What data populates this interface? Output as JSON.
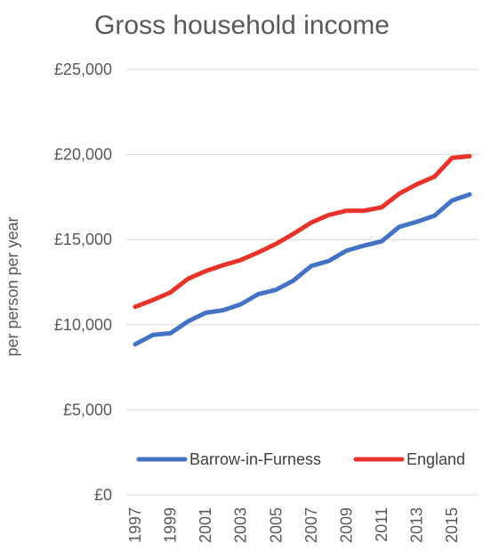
{
  "chart_data": {
    "type": "line",
    "title": "Gross household income",
    "xlabel": "",
    "ylabel": "per person per year",
    "x": [
      1997,
      1998,
      1999,
      2000,
      2001,
      2002,
      2003,
      2004,
      2005,
      2006,
      2007,
      2008,
      2009,
      2010,
      2011,
      2012,
      2013,
      2014,
      2015,
      2016
    ],
    "x_tick_labels": [
      "1997",
      "1999",
      "2001",
      "2003",
      "2005",
      "2007",
      "2009",
      "2011",
      "2013",
      "2015"
    ],
    "y_tick_labels": [
      "£0",
      "£5,000",
      "£10,000",
      "£15,000",
      "£20,000",
      "£25,000"
    ],
    "ylim": [
      0,
      25000
    ],
    "grid": true,
    "legend_position": "bottom",
    "series": [
      {
        "name": "Barrow-in-Furness",
        "color": "#4472C4",
        "values": [
          8850,
          9400,
          9500,
          10200,
          10700,
          10850,
          11200,
          11800,
          12050,
          12600,
          13450,
          13750,
          14350,
          14650,
          14900,
          15750,
          16050,
          16400,
          17300,
          17650
        ]
      },
      {
        "name": "England",
        "color": "#E8332A",
        "values": [
          11050,
          11450,
          11900,
          12700,
          13150,
          13500,
          13800,
          14250,
          14750,
          15350,
          16000,
          16450,
          16700,
          16700,
          16900,
          17700,
          18250,
          18700,
          19800,
          19900
        ]
      }
    ]
  }
}
